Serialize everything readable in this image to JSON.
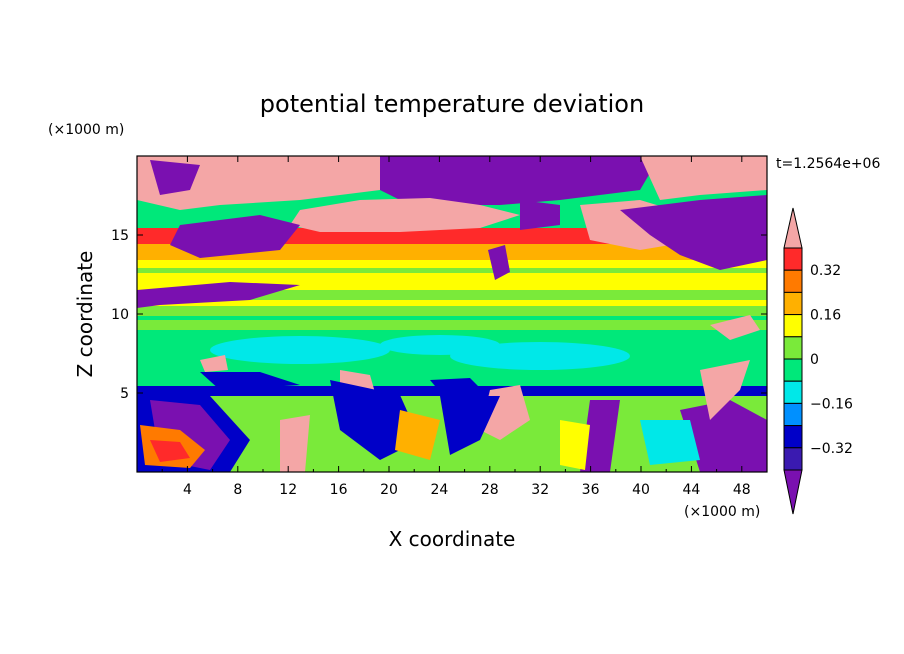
{
  "chart_data": {
    "type": "heatmap",
    "title": "potential temperature deviation",
    "xlabel": "X coordinate",
    "ylabel": "Z coordinate",
    "x_unit": "(×1000 m)",
    "y_unit": "(×1000 m)",
    "time_label": "t=1.2564e+06",
    "xlim": [
      0,
      50
    ],
    "ylim": [
      0,
      20
    ],
    "x_ticks": [
      "4",
      "8",
      "12",
      "16",
      "20",
      "24",
      "28",
      "32",
      "36",
      "40",
      "44",
      "48"
    ],
    "y_ticks": [
      "5",
      "10",
      "15"
    ],
    "colorbar": {
      "levels": [
        -0.4,
        -0.32,
        -0.24,
        -0.16,
        -0.08,
        0,
        0.08,
        0.16,
        0.24,
        0.32,
        0.4
      ],
      "labels": [
        "0.32",
        "0.16",
        "0",
        "−0.16",
        "−0.32"
      ],
      "colors_high_to_low": [
        "#f4a6a6",
        "#ff2a2a",
        "#ff7a00",
        "#ffb000",
        "#ffff00",
        "#7aea3a",
        "#00e87a",
        "#00e8e8",
        "#0090ff",
        "#0000c8",
        "#3a1ab0",
        "#7a10b0"
      ]
    },
    "layers": [
      {
        "z_min": 18.5,
        "z_max": 20,
        "value": "mixed: 0.4 and -0.4"
      },
      {
        "z_min": 14.5,
        "z_max": 18.5,
        "value": "mixed: -0.4 to 0.4"
      },
      {
        "z_min": 13,
        "z_max": 14.5,
        "value": 0.32
      },
      {
        "z_min": 10,
        "z_max": 13,
        "value": 0.05
      },
      {
        "z_min": 5,
        "z_max": 10,
        "value": -0.1
      },
      {
        "z_min": 0,
        "z_max": 5,
        "value": "mixed: -0.4 to 0.4"
      }
    ]
  }
}
